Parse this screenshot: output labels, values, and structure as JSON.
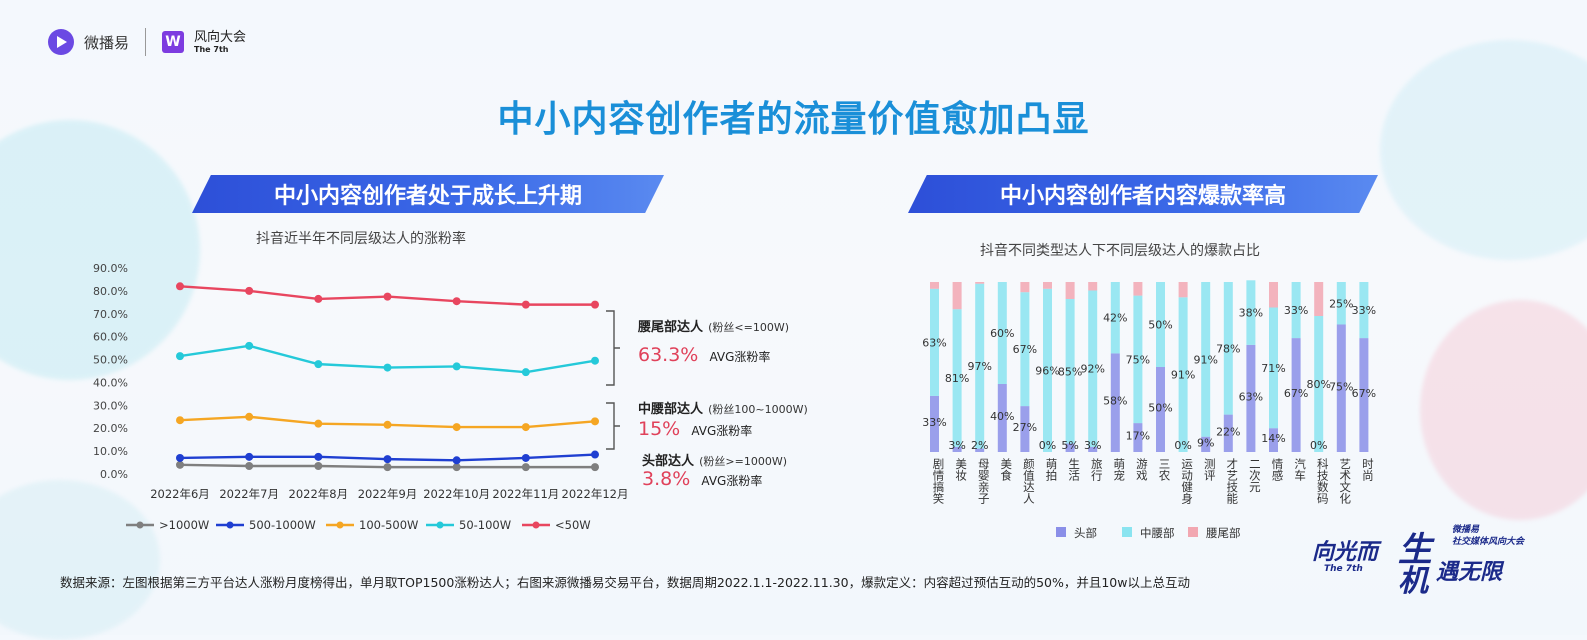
{
  "header": {
    "logo1_text": "微播易",
    "logo2_text": "风向大会",
    "logo2_sub": "The 7th",
    "title": "中小内容创作者的流量价值愈加凸显"
  },
  "left": {
    "banner": "中小内容创作者处于成长上升期",
    "subtitle": "抖音近半年不同层级达人的涨粉率",
    "annotations": [
      {
        "name": "腰尾部达人",
        "fans": "(粉丝<=100W)",
        "pct": "63.3%",
        "avg": "AVG涨粉率"
      },
      {
        "name": "中腰部达人",
        "fans": "(粉丝100~1000W)",
        "pct": "15%",
        "avg": "AVG涨粉率"
      },
      {
        "name": "头部达人",
        "fans": "(粉丝>=1000W)",
        "pct": "3.8%",
        "avg": "AVG涨粉率"
      }
    ]
  },
  "right": {
    "banner": "中小内容创作者内容爆款率高",
    "subtitle": "抖音不同类型达人下不同层级达人的爆款占比"
  },
  "footer": {
    "note": "数据来源：左图根据第三方平台达人涨粉月度榜得出，单月取TOP1500涨粉达人；右图来源微播易交易平台，数据周期2022.1.1-2022.11.30，爆款定义：内容超过预估互动的50%，并且10w以上总互动"
  },
  "badge": {
    "line1": "向光而",
    "line2": "生",
    "line3": "机",
    "line4": "遇无限",
    "small1": "微播易",
    "small2": "社交媒体风向大会",
    "small3": "The 7th"
  },
  "chart_data": [
    {
      "type": "line",
      "title": "抖音近半年不同层级达人的涨粉率",
      "categories": [
        "2022年6月",
        "2022年7月",
        "2022年8月",
        "2022年9月",
        "2022年10月",
        "2022年11月",
        "2022年12月"
      ],
      "y_ticks": [
        "0.0%",
        "10.0%",
        "20.0%",
        "30.0%",
        "40.0%",
        "50.0%",
        "60.0%",
        "70.0%",
        "80.0%",
        "90.0%"
      ],
      "ylim": [
        0,
        90
      ],
      "legend_position": "bottom",
      "series": [
        {
          "name": ">1000W",
          "color": "#7f7f7f",
          "values": [
            4.0,
            3.5,
            3.5,
            3.0,
            3.0,
            3.0,
            3.0
          ]
        },
        {
          "name": "500-1000W",
          "color": "#1f3fd1",
          "values": [
            7.0,
            7.5,
            7.5,
            6.5,
            6.0,
            7.0,
            8.5
          ]
        },
        {
          "name": "100-500W",
          "color": "#f5a623",
          "values": [
            23.5,
            25.0,
            22.0,
            21.5,
            20.5,
            20.5,
            23.0
          ]
        },
        {
          "name": "50-100W",
          "color": "#25c9d9",
          "values": [
            51.5,
            56.0,
            48.0,
            46.5,
            47.0,
            44.5,
            49.5
          ]
        },
        {
          "name": "<50W",
          "color": "#e8465f",
          "values": [
            82.0,
            80.0,
            76.5,
            77.5,
            75.5,
            74.0,
            74.0
          ]
        }
      ]
    },
    {
      "type": "bar",
      "stacked": true,
      "percent": true,
      "title": "抖音不同类型达人下不同层级达人的爆款占比",
      "categories": [
        "剧情搞笑",
        "美妆",
        "母婴亲子",
        "美食",
        "颜值达人",
        "萌拍",
        "生活",
        "旅行",
        "萌宠",
        "游戏",
        "三农",
        "运动健身",
        "测评",
        "才艺技能",
        "二次元",
        "情感",
        "汽车",
        "科技数码",
        "艺术文化",
        "时尚"
      ],
      "legend_position": "bottom",
      "series": [
        {
          "name": "头部",
          "color": "#8a8fe8",
          "values": [
            33,
            3,
            2,
            40,
            27,
            0,
            5,
            3,
            58,
            17,
            50,
            0,
            9,
            22,
            63,
            14,
            67,
            0,
            75,
            67
          ]
        },
        {
          "name": "中腰部",
          "color": "#8ae4f0",
          "values": [
            63,
            81,
            97,
            60,
            67,
            96,
            85,
            92,
            42,
            75,
            50,
            91,
            91,
            78,
            38,
            71,
            33,
            80,
            25,
            33
          ]
        },
        {
          "name": "腰尾部",
          "color": "#f2a7b1",
          "values": [
            4,
            16,
            1,
            0,
            6,
            4,
            10,
            5,
            0,
            8,
            0,
            9,
            0,
            0,
            0,
            15,
            0,
            20,
            0,
            0
          ]
        }
      ],
      "labels": {
        "头部": [
          "33%",
          "3%",
          "2%",
          "40%",
          "27%",
          "0%",
          "5%",
          "3%",
          "58%",
          "17%",
          "50%",
          "0%",
          "9%",
          "22%",
          "63%",
          "14%",
          "67%",
          "0%",
          "75%",
          "67%"
        ],
        "中腰部": [
          "63%",
          "81%",
          "97%",
          "60%",
          "67%",
          "96%",
          "85%",
          "92%",
          "42%",
          "75%",
          "50%",
          "91%",
          "91%",
          "78%",
          "38%",
          "71%",
          "33%",
          "80%",
          "25%",
          "33%"
        ]
      }
    }
  ]
}
